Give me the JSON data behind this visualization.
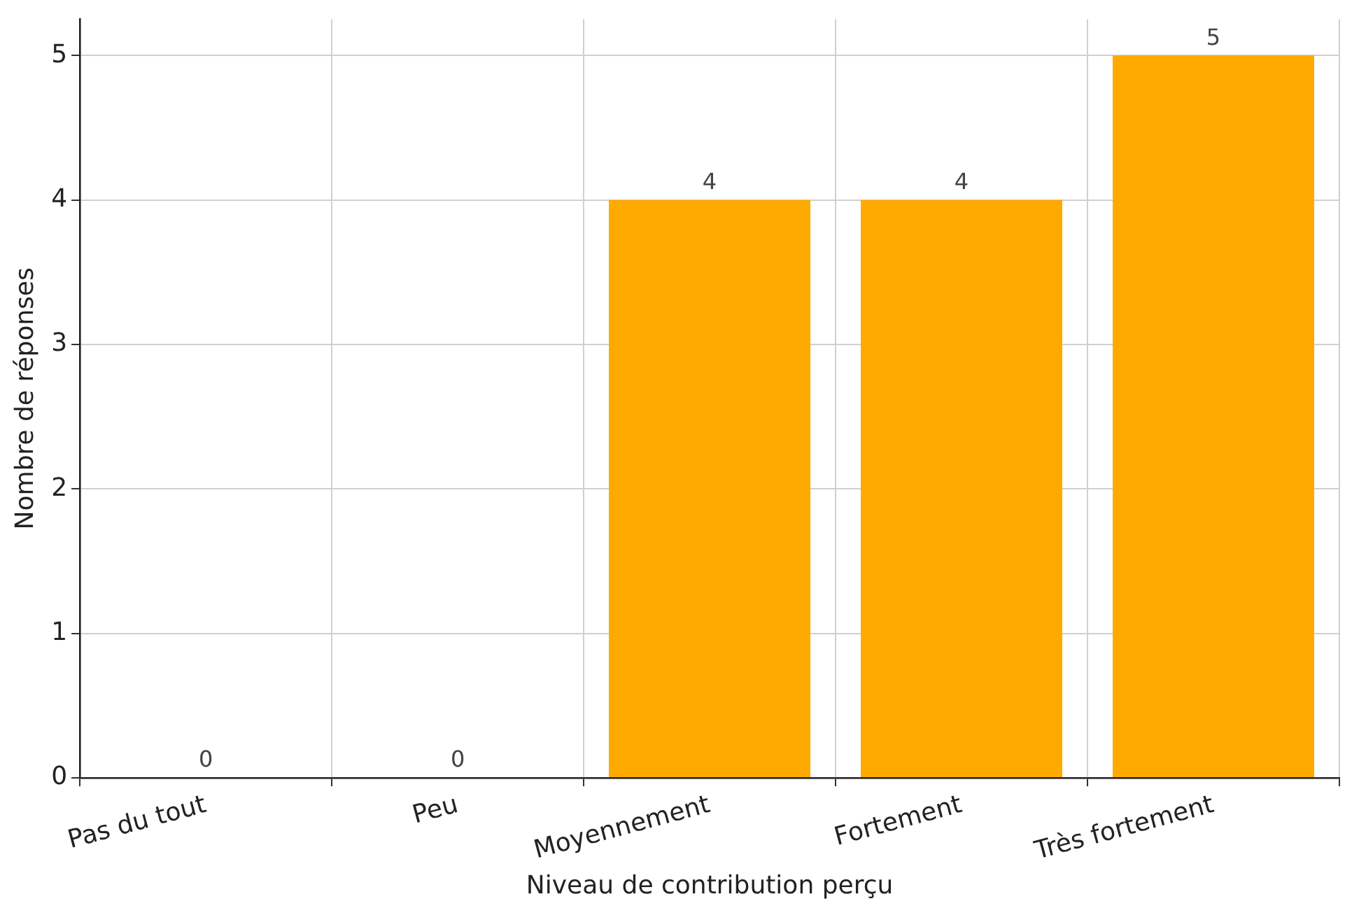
{
  "chart_data": {
    "type": "bar",
    "xlabel": "Niveau de contribution perçu",
    "ylabel": "Nombre de réponses",
    "categories": [
      "Pas du tout",
      "Peu",
      "Moyennement",
      "Fortement",
      "Très fortement"
    ],
    "values": [
      0,
      0,
      4,
      4,
      5
    ],
    "color": "#ffaa00",
    "ylim": [
      0,
      5.25
    ],
    "yticks": [
      0,
      1,
      2,
      3,
      4,
      5
    ],
    "grid": true,
    "data_labels": true
  }
}
